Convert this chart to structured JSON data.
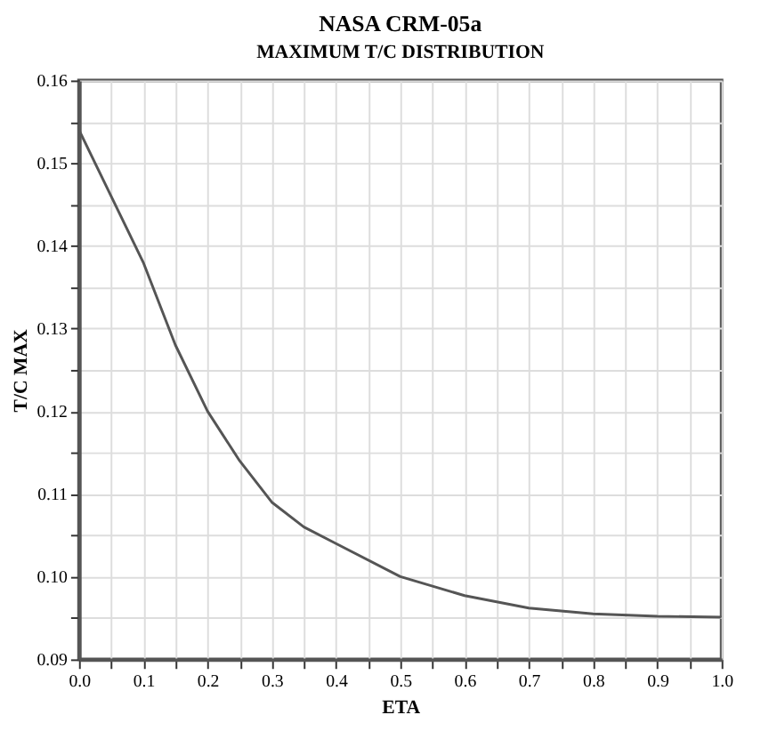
{
  "chart_data": {
    "type": "line",
    "title": "NASA CRM-05a",
    "subtitle": "MAXIMUM T/C DISTRIBUTION",
    "xlabel": "ETA",
    "ylabel": "T/C MAX",
    "x": [
      0,
      0.05,
      0.1,
      0.15,
      0.2,
      0.25,
      0.3,
      0.35,
      0.4,
      0.5,
      0.6,
      0.7,
      0.8,
      0.9,
      1.0
    ],
    "series": [
      {
        "color": "#555555",
        "values": [
          0.154,
          0.146,
          0.138,
          0.128,
          0.12,
          0.114,
          0.109,
          0.106,
          0.104,
          0.1,
          0.0977,
          0.0962,
          0.0955,
          0.0952,
          0.0951
        ]
      }
    ],
    "xlim": [
      0,
      1.0
    ],
    "ylim": [
      0.09,
      0.16
    ],
    "xticks": [
      {
        "value": 0,
        "label": "0.0"
      },
      {
        "value": 0.05,
        "label": null
      },
      0.1,
      {
        "value": 0.15,
        "label": null
      },
      0.2,
      {
        "value": 0.25,
        "label": null
      },
      0.3,
      {
        "value": 0.35,
        "label": null
      },
      0.4,
      {
        "value": 0.45,
        "label": null
      },
      0.5,
      {
        "value": 0.55,
        "label": null
      },
      0.6,
      {
        "value": 0.65,
        "label": null
      },
      0.7,
      {
        "value": 0.75,
        "label": null
      },
      0.8,
      {
        "value": 0.85,
        "label": null
      },
      0.9,
      {
        "value": 0.95,
        "label": null
      },
      {
        "value": 1.0,
        "label": "1.0"
      }
    ],
    "yticks": [
      {
        "value": 0.09,
        "label": "0.09"
      },
      {
        "value": 0.095,
        "label": null
      },
      {
        "value": 0.1,
        "label": "0.10"
      },
      {
        "value": 0.105,
        "label": null
      },
      0.11,
      {
        "value": 0.115,
        "label": null
      },
      0.12,
      {
        "value": 0.125,
        "label": null
      },
      0.13,
      {
        "value": 0.135,
        "label": null
      },
      0.14,
      {
        "value": 0.145,
        "label": null
      },
      0.15,
      {
        "value": 0.155,
        "label": null
      },
      0.16
    ],
    "grid": true,
    "marker": "none",
    "line_style": "solid",
    "legend": false
  }
}
